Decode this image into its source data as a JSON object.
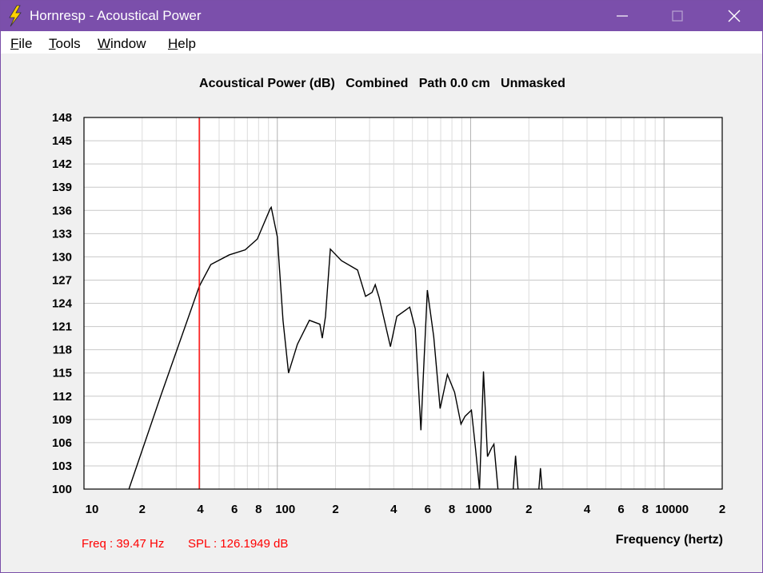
{
  "window": {
    "title": "Hornresp - Acoustical Power",
    "menu": [
      "File",
      "Tools",
      "Window",
      "Help"
    ]
  },
  "chart_data": {
    "type": "line",
    "title": "Acoustical Power (dB)   Combined   Path 0.0 cm   Unmasked",
    "xlabel": "Frequency (hertz)",
    "log_x": true,
    "grid": true,
    "xlim": [
      10,
      20000
    ],
    "ylim": [
      100,
      148
    ],
    "xticks": [
      10,
      {
        "value": 20,
        "label": "2"
      },
      {
        "value": 40,
        "label": "4"
      },
      {
        "value": 60,
        "label": "6"
      },
      {
        "value": 80,
        "label": "8"
      },
      100,
      {
        "value": 200,
        "label": "2"
      },
      {
        "value": 400,
        "label": "4"
      },
      {
        "value": 600,
        "label": "6"
      },
      {
        "value": 800,
        "label": "8"
      },
      1000,
      {
        "value": 2000,
        "label": "2"
      },
      {
        "value": 4000,
        "label": "4"
      },
      {
        "value": 6000,
        "label": "6"
      },
      {
        "value": 8000,
        "label": "8"
      },
      10000,
      {
        "value": 20000,
        "label": "2"
      }
    ],
    "xgrid_minor": [
      30,
      50,
      70,
      90,
      300,
      500,
      700,
      900,
      3000,
      5000,
      7000,
      9000
    ],
    "yticks": [
      100,
      103,
      106,
      109,
      112,
      115,
      118,
      121,
      124,
      127,
      130,
      133,
      136,
      139,
      142,
      145,
      148
    ],
    "series": [
      {
        "name": "Acoustical Power",
        "color": "#000000",
        "x": [
          17.08,
          25,
          39.47,
          45.3,
          56.4,
          68.2,
          78.8,
          91.8,
          93,
          100,
          107,
          114.3,
          127,
          146.5,
          166,
          170.8,
          177.5,
          188,
          214.8,
          260,
          286,
          309,
          321,
          336.5,
          384.6,
          415,
          484,
          517,
          553,
          569,
          597,
          644,
          695,
          758,
          826,
          891,
          935,
          1009,
          1059,
          1111,
          1165,
          1222,
          1282,
          1319,
          1384,
          null,
          1660,
          1707,
          1758,
          null,
          2253,
          2296,
          2340
        ],
        "values": [
          100,
          112.1,
          126.19,
          129.0,
          130.25,
          130.9,
          132.3,
          136.2,
          136.4,
          132.6,
          121.8,
          115.0,
          118.7,
          121.8,
          121.3,
          119.5,
          122.3,
          131.0,
          129.5,
          128.3,
          124.9,
          125.4,
          126.4,
          124.7,
          118.4,
          122.3,
          123.5,
          120.7,
          107.6,
          114.6,
          125.7,
          119.7,
          110.4,
          114.8,
          112.5,
          108.4,
          109.4,
          110.2,
          105.3,
          100,
          115.2,
          104.2,
          105.3,
          105.8,
          100,
          null,
          100,
          104.3,
          100,
          null,
          100,
          102.7,
          100
        ]
      }
    ],
    "cursor": {
      "x": 39.47,
      "color": "#ff0000"
    },
    "readout": {
      "freq": "Freq : 39.47 Hz",
      "spl": "SPL : 126.1949 dB",
      "color": "#ff0000"
    }
  }
}
